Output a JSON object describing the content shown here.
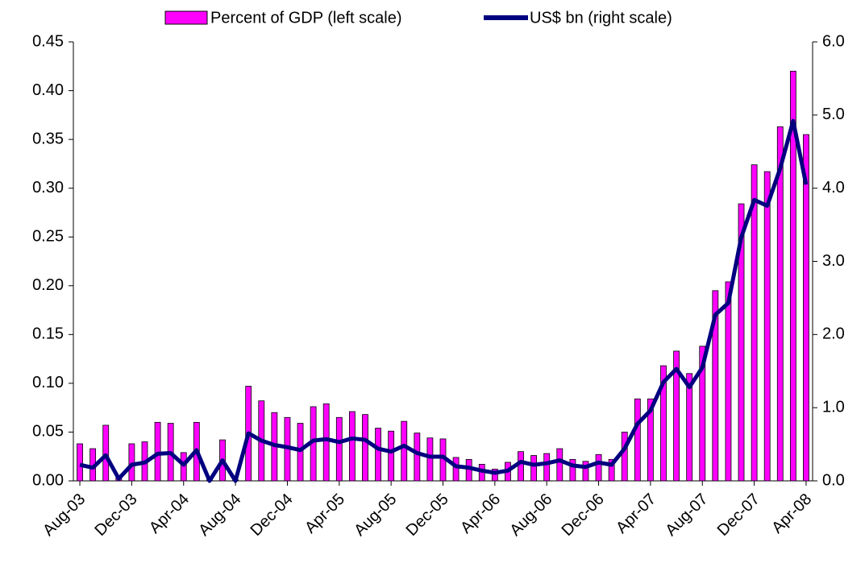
{
  "chart_data": {
    "type": "bar+line",
    "categories": [
      "Aug-03",
      null,
      null,
      null,
      "Dec-03",
      null,
      null,
      null,
      "Apr-04",
      null,
      null,
      null,
      "Aug-04",
      null,
      null,
      null,
      "Dec-04",
      null,
      null,
      null,
      "Apr-05",
      null,
      null,
      null,
      "Aug-05",
      null,
      null,
      null,
      "Dec-05",
      null,
      null,
      null,
      "Apr-06",
      null,
      null,
      null,
      "Aug-06",
      null,
      null,
      null,
      "Dec-06",
      null,
      null,
      null,
      "Apr-07",
      null,
      null,
      null,
      "Aug-07",
      null,
      null,
      null,
      "Dec-07",
      null,
      null,
      null,
      "Apr-08"
    ],
    "series": [
      {
        "name": "Percent of GDP (left scale)",
        "type": "bar",
        "color": "#ff00ff",
        "axis": "y",
        "values": [
          0.038,
          0.033,
          0.057,
          0.003,
          0.038,
          0.04,
          0.06,
          0.059,
          0.029,
          0.06,
          0.001,
          0.042,
          0.001,
          0.097,
          0.082,
          0.07,
          0.065,
          0.059,
          0.076,
          0.079,
          0.065,
          0.071,
          0.068,
          0.054,
          0.051,
          0.061,
          0.049,
          0.044,
          0.043,
          0.024,
          0.022,
          0.017,
          0.012,
          0.019,
          0.03,
          0.026,
          0.028,
          0.033,
          0.022,
          0.02,
          0.027,
          0.022,
          0.05,
          0.084,
          0.084,
          0.118,
          0.133,
          0.11,
          0.138,
          0.195,
          0.204,
          0.284,
          0.324,
          0.317,
          0.363,
          0.42,
          0.355
        ]
      },
      {
        "name": "US$ bn (right scale)",
        "type": "line",
        "color": "#000080",
        "axis": "y2",
        "values": [
          0.22,
          0.18,
          0.35,
          0.03,
          0.22,
          0.25,
          0.37,
          0.38,
          0.22,
          0.42,
          0.0,
          0.28,
          0.0,
          0.65,
          0.55,
          0.49,
          0.46,
          0.42,
          0.55,
          0.57,
          0.53,
          0.58,
          0.56,
          0.44,
          0.4,
          0.48,
          0.38,
          0.33,
          0.33,
          0.2,
          0.18,
          0.14,
          0.11,
          0.14,
          0.26,
          0.22,
          0.24,
          0.28,
          0.21,
          0.19,
          0.25,
          0.22,
          0.44,
          0.78,
          0.96,
          1.35,
          1.53,
          1.28,
          1.55,
          2.27,
          2.43,
          3.33,
          3.84,
          3.76,
          4.27,
          4.92,
          4.05
        ]
      }
    ],
    "ylim": [
      0,
      0.45
    ],
    "yticks": [
      {
        "value": 0,
        "label": "0.00"
      },
      {
        "value": 0.05,
        "label": "0.05"
      },
      {
        "value": 0.1,
        "label": "0.10"
      },
      {
        "value": 0.15,
        "label": "0.15"
      },
      {
        "value": 0.2,
        "label": "0.20"
      },
      {
        "value": 0.25,
        "label": "0.25"
      },
      {
        "value": 0.3,
        "label": "0.30"
      },
      {
        "value": 0.35,
        "label": "0.35"
      },
      {
        "value": 0.4,
        "label": "0.40"
      },
      {
        "value": 0.45,
        "label": "0.45"
      }
    ],
    "y2lim": [
      0,
      6
    ],
    "y2ticks": [
      {
        "value": 0,
        "label": "0.0"
      },
      {
        "value": 1,
        "label": "1.0"
      },
      {
        "value": 2,
        "label": "2.0"
      },
      {
        "value": 3,
        "label": "3.0"
      },
      {
        "value": 4,
        "label": "4.0"
      },
      {
        "value": 5,
        "label": "5.0"
      },
      {
        "value": 6,
        "label": "6.0"
      }
    ],
    "legend": "top"
  }
}
